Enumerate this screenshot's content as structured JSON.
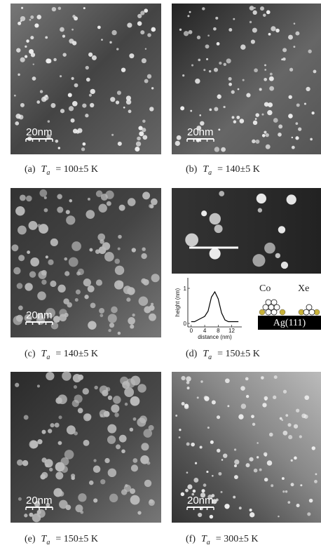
{
  "panels": [
    {
      "label": "(a)",
      "symbol": "T",
      "subscript": "a",
      "value": "= 100±5 K",
      "scale": "20nm"
    },
    {
      "label": "(b)",
      "symbol": "T",
      "subscript": "a",
      "value": "= 140±5 K",
      "scale": "20nm"
    },
    {
      "label": "(c)",
      "symbol": "T",
      "subscript": "a",
      "value": "= 140±5 K",
      "scale": "20nm"
    },
    {
      "label": "(d)",
      "symbol": "T",
      "subscript": "a",
      "value": "= 150±5 K",
      "inset": {
        "x_label": "distance (nm)",
        "y_label": "height (nm)",
        "xlim": [
          -1,
          15
        ],
        "ylim": [
          -0.1,
          1.3
        ],
        "xticks": [
          0,
          4,
          8,
          12
        ],
        "yticks": [
          0,
          1
        ],
        "x": [
          0,
          1,
          2,
          3,
          4,
          5,
          6,
          7,
          8,
          9,
          10,
          11,
          12,
          13,
          14
        ],
        "y": [
          0.05,
          0.05,
          0.1,
          0.15,
          0.2,
          0.35,
          0.75,
          0.9,
          0.7,
          0.3,
          0.1,
          0.05,
          0.05,
          0.05,
          0.05
        ]
      },
      "diagram": {
        "left": "Co",
        "right": "Xe",
        "substrate": "Ag(111)"
      }
    },
    {
      "label": "(e)",
      "symbol": "T",
      "subscript": "a",
      "value": "= 150±5 K",
      "scale": "20nm"
    },
    {
      "label": "(f)",
      "symbol": "T",
      "subscript": "a",
      "value": "= 300±5 K",
      "scale": "20nm"
    }
  ]
}
